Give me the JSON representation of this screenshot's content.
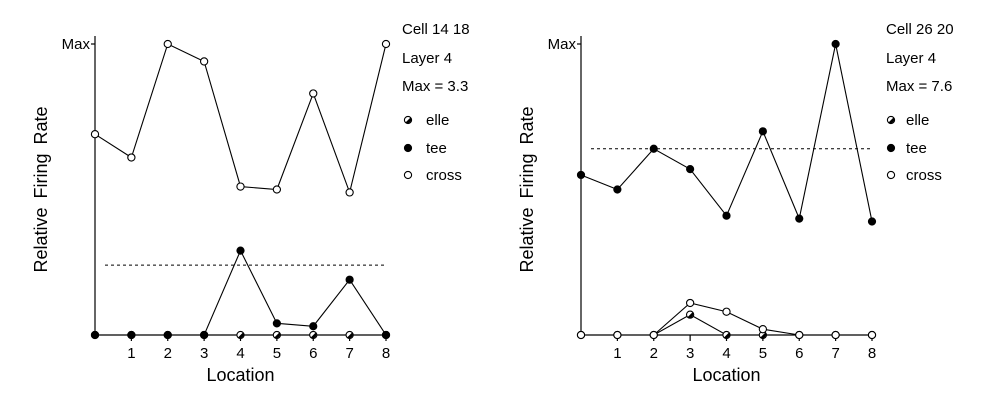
{
  "chart_data": [
    {
      "type": "line",
      "x": [
        0,
        1,
        2,
        3,
        4,
        5,
        6,
        7,
        8
      ],
      "xticklabels": [
        "1",
        "2",
        "3",
        "4",
        "5",
        "6",
        "7",
        "8"
      ],
      "xlabel": "Location",
      "ylabel": "Relative Firing Rate",
      "ytick_label": "Max",
      "ylim": [
        0,
        1
      ],
      "baseline": 0.24,
      "annotations": [
        "Cell 14 18",
        "Layer 4",
        "Max = 3.3"
      ],
      "series": [
        {
          "name": "elle",
          "marker": "half-filled",
          "values": [
            0,
            0,
            0,
            0,
            0,
            0,
            0,
            0,
            0
          ]
        },
        {
          "name": "tee",
          "marker": "filled",
          "values": [
            0,
            0,
            0,
            0,
            0.29,
            0.04,
            0.03,
            0.19,
            0
          ]
        },
        {
          "name": "cross",
          "marker": "open",
          "values": [
            0.69,
            0.61,
            1.0,
            0.94,
            0.51,
            0.5,
            0.83,
            0.49,
            1.0
          ]
        }
      ]
    },
    {
      "type": "line",
      "x": [
        0,
        1,
        2,
        3,
        4,
        5,
        6,
        7,
        8
      ],
      "xticklabels": [
        "1",
        "2",
        "3",
        "4",
        "5",
        "6",
        "7",
        "8"
      ],
      "xlabel": "Location",
      "ylabel": "Relative Firing Rate",
      "ytick_label": "Max",
      "ylim": [
        0,
        1
      ],
      "baseline": 0.64,
      "annotations": [
        "Cell 26 20",
        "Layer  4",
        "Max = 7.6"
      ],
      "series": [
        {
          "name": "elle",
          "marker": "half-filled",
          "values": [
            0,
            0,
            0,
            0.07,
            0,
            0,
            0,
            0,
            0
          ]
        },
        {
          "name": "tee",
          "marker": "filled",
          "values": [
            0.55,
            0.5,
            0.64,
            0.57,
            0.41,
            0.7,
            0.4,
            1.0,
            0.39
          ]
        },
        {
          "name": "cross",
          "marker": "open",
          "values": [
            0,
            0,
            0,
            0.11,
            0.08,
            0.02,
            0,
            0,
            0
          ]
        }
      ]
    }
  ]
}
